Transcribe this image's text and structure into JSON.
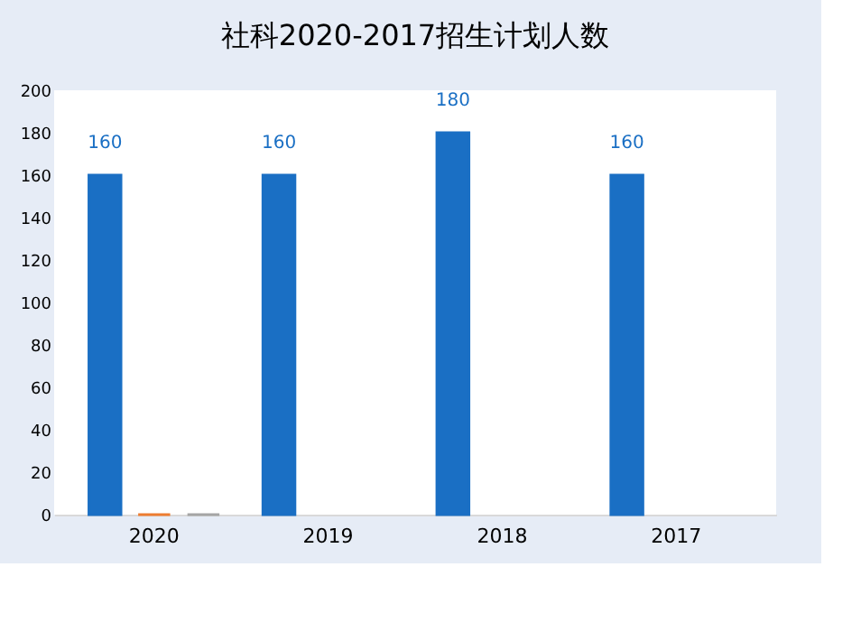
{
  "chart_data": {
    "type": "bar",
    "title": "社科2020-2017招生计划人数",
    "categories": [
      "2020",
      "2019",
      "2018",
      "2017"
    ],
    "series": [
      {
        "color": "#1a6fc4",
        "values": [
          160,
          160,
          180,
          160
        ],
        "value_labels": [
          "160",
          "160",
          "180",
          "160"
        ]
      },
      {
        "color": "#ed7d31",
        "values": [
          0,
          null,
          null,
          null
        ]
      },
      {
        "color": "#a5a5a5",
        "values": [
          0,
          null,
          null,
          null
        ]
      }
    ],
    "ylim": [
      0,
      200
    ],
    "yticks": [
      0,
      20,
      40,
      60,
      80,
      100,
      120,
      140,
      160,
      180,
      200
    ],
    "grid": false,
    "legend": false
  }
}
